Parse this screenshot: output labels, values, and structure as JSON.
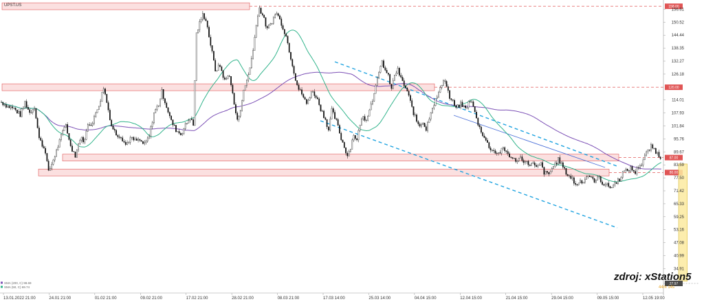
{
  "chart_data": {
    "type": "candlestick",
    "ticker": "UPST.US",
    "watermark": "zdroj: xStation5",
    "y_ticks": [
      "156.61",
      "150.52",
      "144.44",
      "138.35",
      "132.27",
      "126.18",
      "114.01",
      "107.93",
      "101.84",
      "95.76",
      "89.67",
      "83.59",
      "77.50",
      "71.42",
      "65.33",
      "59.25",
      "53.16",
      "47.08",
      "40.99",
      "34.91"
    ],
    "y_tick_values": [
      156.61,
      150.52,
      144.44,
      138.35,
      132.27,
      126.18,
      114.01,
      107.93,
      101.84,
      95.76,
      89.67,
      83.59,
      77.5,
      71.42,
      65.33,
      59.25,
      53.16,
      47.08,
      40.99,
      34.91
    ],
    "x_ticks": [
      "13.01.2022 21:00",
      "24.01 21:00",
      "01.02 21:00",
      "09.02 21:00",
      "17.02 21:00",
      "28.02 21:00",
      "08.03 21:00",
      "17.03 14:00",
      "25.03 14:00",
      "04.04 15:00",
      "12.04 15:00",
      "21.04 15:00",
      "29.04 15:00",
      "09.05 15:00",
      "12.05 19:00"
    ],
    "price_levels": [
      {
        "label": "158.00",
        "value": 158.0,
        "color": "#e05555"
      },
      {
        "label": "120.00",
        "value": 120.0,
        "color": "#e05555"
      },
      {
        "label": "87.00",
        "value": 87.0,
        "color": "#e05555"
      },
      {
        "label": "80.00",
        "value": 80.0,
        "color": "#e05555"
      }
    ],
    "current_price": {
      "label": "27.97",
      "value": 27.97,
      "color": "#4a4a4a"
    },
    "timer_label": "44m 14s",
    "legend": [
      {
        "text": "SMA (200, C) 98.69",
        "color": "#7b4fb5"
      },
      {
        "text": "SMA (50, C) 69.74",
        "color": "#2fb38a"
      }
    ],
    "ylim": [
      27.0,
      159.0
    ],
    "n_bars": 840,
    "colors": {
      "up": "#111111",
      "down": "#111111",
      "sma200": "#7b4fb5",
      "sma50": "#2fb38a",
      "channel": "#1fa3e0",
      "zone_fill": "#f7c6c6",
      "zone_stroke": "#e05555",
      "highlight_fill": "#fbeaa0",
      "highlight_stroke": "#d9b930",
      "grid": "#dddddd"
    },
    "anchors": [
      [
        0,
        113
      ],
      [
        8,
        111
      ],
      [
        16,
        110
      ],
      [
        24,
        107
      ],
      [
        30,
        113
      ],
      [
        36,
        108
      ],
      [
        42,
        111
      ],
      [
        48,
        96
      ],
      [
        56,
        90
      ],
      [
        60,
        80
      ],
      [
        64,
        84
      ],
      [
        70,
        90
      ],
      [
        76,
        97
      ],
      [
        82,
        103
      ],
      [
        86,
        95
      ],
      [
        90,
        91
      ],
      [
        94,
        88
      ],
      [
        100,
        96
      ],
      [
        106,
        95
      ],
      [
        110,
        103
      ],
      [
        116,
        103
      ],
      [
        120,
        108
      ],
      [
        126,
        114
      ],
      [
        130,
        120
      ],
      [
        134,
        113
      ],
      [
        140,
        102
      ],
      [
        146,
        98
      ],
      [
        152,
        97
      ],
      [
        158,
        93
      ],
      [
        164,
        96
      ],
      [
        170,
        95
      ],
      [
        176,
        95
      ],
      [
        182,
        93
      ],
      [
        188,
        97
      ],
      [
        194,
        108
      ],
      [
        200,
        112
      ],
      [
        204,
        118
      ],
      [
        210,
        111
      ],
      [
        216,
        104
      ],
      [
        222,
        100
      ],
      [
        228,
        98
      ],
      [
        234,
        102
      ],
      [
        240,
        106
      ],
      [
        244,
        102
      ],
      [
        248,
        145
      ],
      [
        252,
        150
      ],
      [
        256,
        154
      ],
      [
        260,
        152
      ],
      [
        266,
        140
      ],
      [
        272,
        128
      ],
      [
        278,
        130
      ],
      [
        284,
        123
      ],
      [
        290,
        126
      ],
      [
        296,
        112
      ],
      [
        300,
        104
      ],
      [
        304,
        110
      ],
      [
        308,
        118
      ],
      [
        314,
        126
      ],
      [
        320,
        137
      ],
      [
        324,
        150
      ],
      [
        328,
        157
      ],
      [
        332,
        154
      ],
      [
        338,
        147
      ],
      [
        344,
        151
      ],
      [
        350,
        155
      ],
      [
        356,
        150
      ],
      [
        362,
        144
      ],
      [
        368,
        134
      ],
      [
        374,
        124
      ],
      [
        378,
        119
      ],
      [
        382,
        117
      ],
      [
        388,
        112
      ],
      [
        394,
        118
      ],
      [
        400,
        116
      ],
      [
        406,
        110
      ],
      [
        412,
        105
      ],
      [
        416,
        100
      ],
      [
        420,
        109
      ],
      [
        426,
        104
      ],
      [
        432,
        96
      ],
      [
        436,
        92
      ],
      [
        440,
        88
      ],
      [
        444,
        92
      ],
      [
        448,
        98
      ],
      [
        452,
        95
      ],
      [
        456,
        103
      ],
      [
        460,
        106
      ],
      [
        464,
        105
      ],
      [
        468,
        110
      ],
      [
        472,
        114
      ],
      [
        476,
        122
      ],
      [
        480,
        126
      ],
      [
        484,
        132
      ],
      [
        488,
        128
      ],
      [
        492,
        125
      ],
      [
        496,
        119
      ],
      [
        500,
        126
      ],
      [
        504,
        128
      ],
      [
        508,
        124
      ],
      [
        512,
        121
      ],
      [
        516,
        118
      ],
      [
        520,
        113
      ],
      [
        524,
        108
      ],
      [
        528,
        104
      ],
      [
        532,
        102
      ],
      [
        536,
        104
      ],
      [
        540,
        100
      ],
      [
        546,
        109
      ],
      [
        552,
        114
      ],
      [
        558,
        119
      ],
      [
        562,
        124
      ],
      [
        566,
        121
      ],
      [
        570,
        115
      ],
      [
        574,
        113
      ],
      [
        578,
        110
      ],
      [
        584,
        112
      ],
      [
        590,
        110
      ],
      [
        596,
        114
      ],
      [
        600,
        111
      ],
      [
        604,
        105
      ],
      [
        608,
        101
      ],
      [
        612,
        98
      ],
      [
        616,
        95
      ],
      [
        620,
        92
      ],
      [
        626,
        90
      ],
      [
        632,
        89
      ],
      [
        638,
        91
      ],
      [
        644,
        89
      ],
      [
        650,
        86
      ],
      [
        656,
        86
      ],
      [
        660,
        87
      ],
      [
        666,
        85
      ],
      [
        670,
        84
      ],
      [
        676,
        84
      ],
      [
        680,
        82
      ],
      [
        686,
        84
      ],
      [
        690,
        80
      ],
      [
        696,
        79
      ],
      [
        700,
        82
      ],
      [
        704,
        84
      ],
      [
        708,
        86
      ],
      [
        712,
        84
      ],
      [
        716,
        81
      ],
      [
        720,
        79
      ],
      [
        726,
        77
      ],
      [
        730,
        74
      ],
      [
        736,
        76
      ],
      [
        740,
        76
      ],
      [
        746,
        79
      ],
      [
        750,
        77
      ],
      [
        756,
        76
      ],
      [
        760,
        78
      ],
      [
        764,
        75
      ],
      [
        770,
        74
      ],
      [
        776,
        73
      ],
      [
        780,
        75
      ],
      [
        786,
        77
      ],
      [
        790,
        80
      ],
      [
        796,
        81
      ],
      [
        800,
        82
      ],
      [
        806,
        80
      ],
      [
        810,
        83
      ],
      [
        814,
        84
      ],
      [
        818,
        88
      ],
      [
        822,
        90
      ],
      [
        826,
        92
      ],
      [
        830,
        91
      ],
      [
        834,
        89
      ],
      [
        840,
        86
      ],
      [
        846,
        84
      ],
      [
        850,
        82
      ],
      [
        854,
        82
      ],
      [
        858,
        79
      ],
      [
        862,
        77
      ],
      [
        866,
        75
      ],
      [
        868,
        32
      ],
      [
        872,
        36
      ],
      [
        876,
        34
      ],
      [
        880,
        31
      ],
      [
        884,
        29
      ],
      [
        886,
        28
      ]
    ]
  }
}
